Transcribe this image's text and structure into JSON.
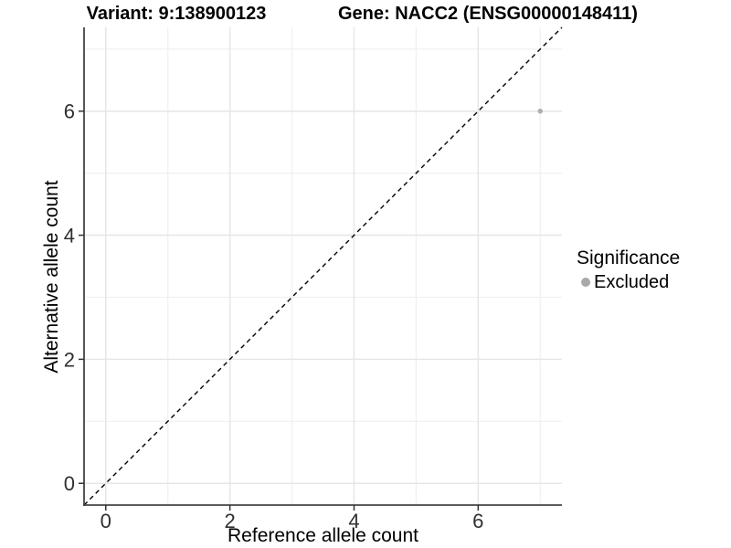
{
  "titles": {
    "left": "Variant: 9:138900123",
    "right": "Gene: NACC2 (ENSG00000148411)"
  },
  "chart_data": {
    "type": "scatter",
    "xlabel": "Reference allele count",
    "ylabel": "Alternative allele count",
    "xlim": [
      -0.35,
      7.35
    ],
    "ylim": [
      -0.35,
      7.35
    ],
    "x_ticks": [
      0,
      2,
      4,
      6
    ],
    "y_ticks": [
      0,
      2,
      4,
      6
    ],
    "x_minor_gridlines": [
      1,
      3,
      5,
      7
    ],
    "y_minor_gridlines": [
      1,
      3,
      5,
      7
    ],
    "grid": true,
    "identity_line": {
      "equation": "y = x",
      "style": "dashed",
      "color": "#000000"
    },
    "series": [
      {
        "name": "Excluded",
        "color": "#b0b0b0",
        "points": [
          [
            7,
            6
          ]
        ]
      }
    ],
    "legend": {
      "position": "right",
      "title": "Significance",
      "entries": [
        {
          "label": "Excluded",
          "color": "#a9a9a9"
        }
      ]
    },
    "colors": {
      "point_gray": "#b0b0b0",
      "axis_line": "#444444",
      "tick_label": "#303030",
      "major_grid": "#e6e6e6",
      "minor_grid": "#f0f0f0"
    }
  }
}
